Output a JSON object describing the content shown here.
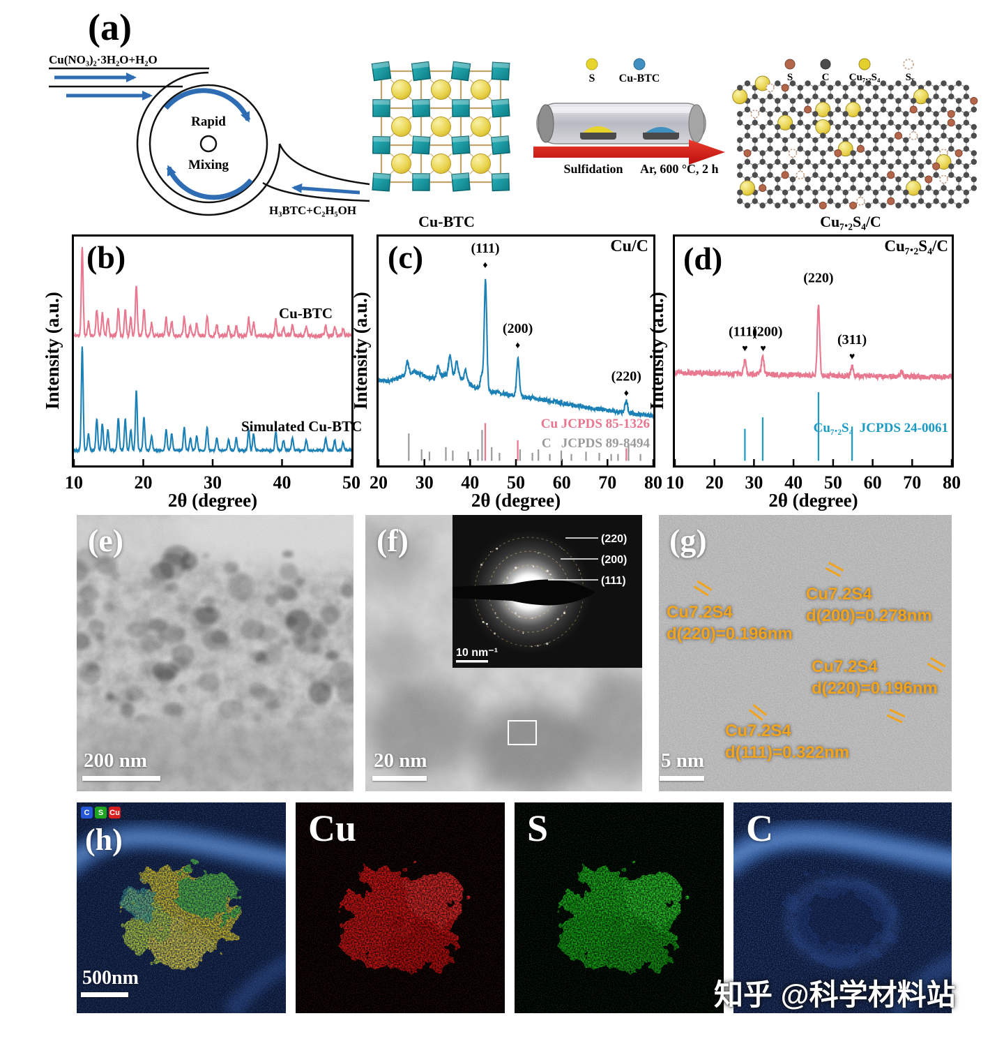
{
  "watermark": "知乎 @科学材料站",
  "panel_a": {
    "label": "(a)",
    "reagent_top": "Cu(NO₃)₂·3H₂O+H₂O",
    "reagent_bottom": "H₃BTC+C₂H₅OH",
    "mixer": {
      "line1": "Rapid",
      "line2": "Mixing"
    },
    "product_mof": "Cu-BTC",
    "furnace_legend": [
      {
        "label": "S",
        "color": "#e8d52c"
      },
      {
        "label": "Cu-BTC",
        "color": "#3f8fc0"
      }
    ],
    "process_step": "Sulfidation",
    "process_conditions": "Ar, 600 °C, 2 h",
    "lattice_legend": [
      {
        "label": "S",
        "color": "#b4664a"
      },
      {
        "label": "C",
        "color": "#4d4d4d"
      },
      {
        "label": "Cu₇.₂S₄",
        "color": "#e3cf2e"
      },
      {
        "label": "Sᵥ",
        "color": "vacancy"
      }
    ],
    "product_final": "Cu₇.₂S₄/C"
  },
  "chart_data": [
    {
      "id": "b",
      "type": "line",
      "panel_label": "(b)",
      "xlabel": "2θ (degree)",
      "ylabel": "Intensity (a.u.)",
      "xlim": [
        10,
        50
      ],
      "xticks": [
        10,
        20,
        30,
        40,
        50
      ],
      "series": [
        {
          "name": "Cu-BTC",
          "color": "#e8788f",
          "offset": 0.567,
          "scale": 0.383,
          "pw": 0.13,
          "noise": 0.008,
          "seed": 11,
          "peaks": [
            [
              11.2,
              1.0
            ],
            [
              12.1,
              0.16
            ],
            [
              13.3,
              0.3
            ],
            [
              14.1,
              0.26
            ],
            [
              14.9,
              0.2
            ],
            [
              16.4,
              0.32
            ],
            [
              17.4,
              0.3
            ],
            [
              18.2,
              0.2
            ],
            [
              19.0,
              0.58
            ],
            [
              20.1,
              0.32
            ],
            [
              21.2,
              0.14
            ],
            [
              23.3,
              0.2
            ],
            [
              24.1,
              0.16
            ],
            [
              25.9,
              0.22
            ],
            [
              26.8,
              0.12
            ],
            [
              27.7,
              0.14
            ],
            [
              29.2,
              0.22
            ],
            [
              30.6,
              0.12
            ],
            [
              32.3,
              0.1
            ],
            [
              33.4,
              0.12
            ],
            [
              35.2,
              0.2
            ],
            [
              35.9,
              0.16
            ],
            [
              39.1,
              0.18
            ],
            [
              40.2,
              0.1
            ],
            [
              41.5,
              0.12
            ],
            [
              43.5,
              0.1
            ],
            [
              46.3,
              0.12
            ],
            [
              47.6,
              0.1
            ],
            [
              48.8,
              0.08
            ]
          ]
        },
        {
          "name": "Simulated Cu-BTC",
          "color": "#1b80b5",
          "offset": 0.066,
          "scale": 0.45,
          "pw": 0.13,
          "noise": 0.004,
          "seed": 5,
          "peaks": [
            [
              11.2,
              1.0
            ],
            [
              12.1,
              0.16
            ],
            [
              13.3,
              0.3
            ],
            [
              14.1,
              0.26
            ],
            [
              14.9,
              0.2
            ],
            [
              16.4,
              0.32
            ],
            [
              17.4,
              0.3
            ],
            [
              18.2,
              0.2
            ],
            [
              19.0,
              0.58
            ],
            [
              20.1,
              0.32
            ],
            [
              21.2,
              0.14
            ],
            [
              23.3,
              0.2
            ],
            [
              24.1,
              0.16
            ],
            [
              25.9,
              0.22
            ],
            [
              26.8,
              0.12
            ],
            [
              27.7,
              0.14
            ],
            [
              29.2,
              0.22
            ],
            [
              30.6,
              0.12
            ],
            [
              32.3,
              0.1
            ],
            [
              33.4,
              0.12
            ],
            [
              35.2,
              0.2
            ],
            [
              35.9,
              0.16
            ],
            [
              39.1,
              0.18
            ],
            [
              40.2,
              0.1
            ],
            [
              41.5,
              0.12
            ],
            [
              43.5,
              0.1
            ],
            [
              46.3,
              0.12
            ],
            [
              47.6,
              0.1
            ],
            [
              48.8,
              0.08
            ]
          ]
        }
      ]
    },
    {
      "id": "c",
      "type": "line",
      "panel_label": "(c)",
      "corner_label": "Cu/C",
      "xlabel": "2θ (degree)",
      "ylabel": "Intensity (a.u.)",
      "xlim": [
        20,
        80
      ],
      "xticks": [
        20,
        30,
        40,
        50,
        60,
        70,
        80
      ],
      "series": [
        {
          "name": "Cu/C",
          "color": "#1b80b5",
          "base": [
            [
              20,
              0.37
            ],
            [
              25,
              0.35
            ],
            [
              30,
              0.365
            ],
            [
              40,
              0.34
            ],
            [
              45,
              0.32
            ],
            [
              55,
              0.29
            ],
            [
              65,
              0.255
            ],
            [
              80,
              0.215
            ]
          ],
          "broad": [
            [
              27,
              0.05,
              2.5
            ],
            [
              36,
              0.05,
              2.5
            ]
          ],
          "pw": 0.28,
          "noise": 0.01,
          "seed": 9,
          "peaks": [
            [
              26.3,
              0.05
            ],
            [
              33.0,
              0.05
            ],
            [
              35.6,
              0.08
            ],
            [
              37.1,
              0.06
            ],
            [
              39.0,
              0.05
            ],
            [
              42.5,
              0.06
            ],
            [
              43.35,
              0.48
            ],
            [
              50.45,
              0.16
            ],
            [
              74.1,
              0.05
            ]
          ]
        }
      ],
      "annotations": [
        {
          "x": 43.3,
          "y": 0.93,
          "text": "(111)",
          "marker": "♦"
        },
        {
          "x": 50.4,
          "y": 0.58,
          "text": "(200)",
          "marker": "♦"
        },
        {
          "x": 74.1,
          "y": 0.37,
          "text": "(220)",
          "marker": "♦"
        }
      ],
      "sticks": [
        {
          "name": "Cu JCPDS 85-1326",
          "color": "#e8768f",
          "base": 0.02,
          "lines": [
            [
              43.3,
              0.165
            ],
            [
              50.4,
              0.09
            ],
            [
              74.1,
              0.055
            ]
          ]
        },
        {
          "name": "C   JCPDS 89-8494",
          "color": "#9a9a9a",
          "base": 0.02,
          "lines": [
            [
              26.6,
              0.12
            ],
            [
              29.4,
              0.05
            ],
            [
              31.1,
              0.04
            ],
            [
              34.7,
              0.06
            ],
            [
              36.2,
              0.045
            ],
            [
              39.6,
              0.04
            ],
            [
              41.7,
              0.05
            ],
            [
              42.6,
              0.135
            ],
            [
              44.7,
              0.06
            ],
            [
              46.4,
              0.035
            ],
            [
              50.9,
              0.05
            ],
            [
              53.6,
              0.035
            ],
            [
              54.9,
              0.05
            ],
            [
              57.4,
              0.03
            ],
            [
              59.9,
              0.045
            ],
            [
              62.1,
              0.03
            ],
            [
              65.3,
              0.04
            ],
            [
              68.2,
              0.035
            ],
            [
              70.8,
              0.03
            ],
            [
              72.3,
              0.03
            ],
            [
              74.6,
              0.075
            ],
            [
              77.2,
              0.03
            ]
          ]
        }
      ]
    },
    {
      "id": "d",
      "type": "line",
      "panel_label": "(d)",
      "corner_label": "Cu₇.₂S₄/C",
      "xlabel": "2θ (degree)",
      "ylabel": "Intensity (a.u.)",
      "xlim": [
        10,
        80
      ],
      "xticks": [
        10,
        20,
        30,
        40,
        50,
        60,
        70,
        80
      ],
      "series": [
        {
          "name": "Cu₇.₂S₄/C",
          "color": "#e8788f",
          "base": [
            [
              10,
              0.405
            ],
            [
              30,
              0.398
            ],
            [
              50,
              0.392
            ],
            [
              80,
              0.386
            ]
          ],
          "pw": 0.3,
          "noise": 0.012,
          "seed": 4,
          "peaks": [
            [
              27.7,
              0.06
            ],
            [
              32.2,
              0.085
            ],
            [
              46.3,
              0.31
            ],
            [
              54.8,
              0.045
            ],
            [
              67.3,
              0.025
            ]
          ]
        }
      ],
      "annotations": [
        {
          "x": 27.2,
          "mx": 27.7,
          "y": 0.565,
          "text": "(111)",
          "marker": "♥"
        },
        {
          "x": 33.4,
          "mx": 32.3,
          "y": 0.565,
          "text": "(200)",
          "marker": "♥"
        },
        {
          "x": 46.3,
          "y": 0.8,
          "text": "(220)",
          "marker": ""
        },
        {
          "x": 54.8,
          "y": 0.53,
          "text": "(311)",
          "marker": "♥"
        }
      ],
      "sticks": [
        {
          "name": "Cu₇.₂S₄  JCPDS 24-0061",
          "color": "#1b9ac4",
          "base": 0.02,
          "lines": [
            [
              27.7,
              0.14
            ],
            [
              32.2,
              0.19
            ],
            [
              46.3,
              0.3
            ],
            [
              54.8,
              0.15
            ]
          ]
        }
      ]
    }
  ],
  "tem": {
    "e": {
      "label": "(e)",
      "scale_bar": "200 nm"
    },
    "f": {
      "label": "(f)",
      "scale_bar": "20 nm",
      "saed": {
        "rings": [
          "(220)",
          "(200)",
          "(111)"
        ],
        "scale": "10 nm⁻¹"
      }
    },
    "g": {
      "label": "(g)",
      "scale_bar": "5 nm",
      "annotations": [
        {
          "name": "Cu7.2S4",
          "d": "d(220)=0.196nm"
        },
        {
          "name": "Cu7.2S4",
          "d": "d(200)=0.278nm"
        },
        {
          "name": "Cu7.2S4",
          "d": "d(220)=0.196nm"
        },
        {
          "name": "Cu7.2S4",
          "d": "d(111)=0.322nm"
        }
      ]
    }
  },
  "eds": {
    "composite_label": "(h)",
    "legend": [
      {
        "label": "C",
        "color": "#2458d8"
      },
      {
        "label": "S",
        "color": "#1fa41f"
      },
      {
        "label": "Cu",
        "color": "#d81f1f"
      }
    ],
    "scale_bar": "500nm",
    "maps": [
      {
        "label": "Cu"
      },
      {
        "label": "S"
      },
      {
        "label": "C"
      }
    ]
  }
}
